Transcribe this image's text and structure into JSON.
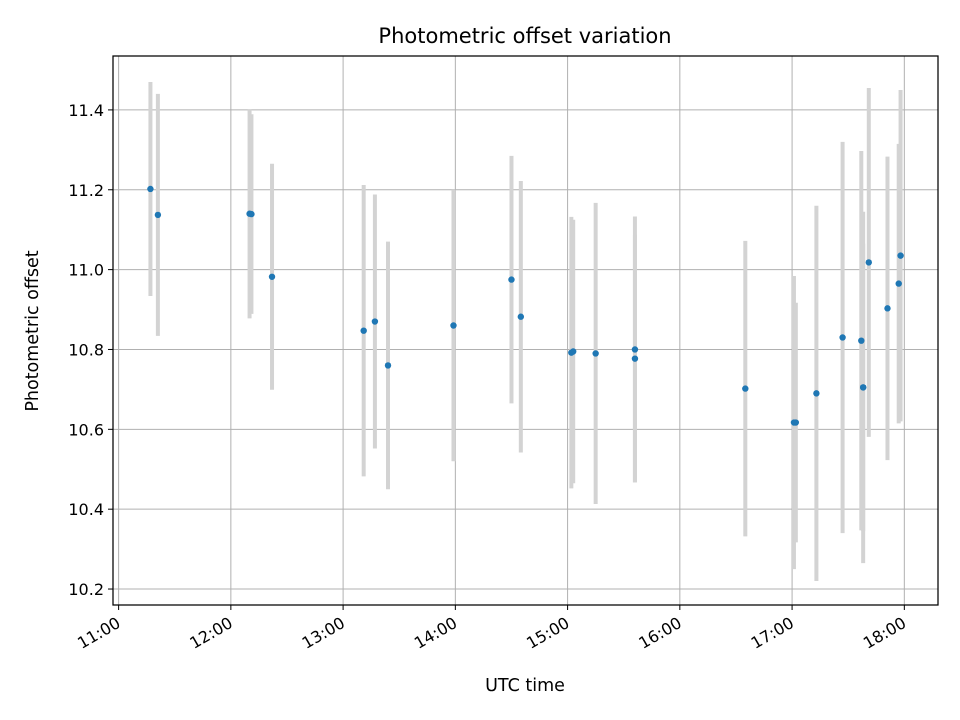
{
  "chart_data": {
    "type": "scatter",
    "title": "Photometric offset variation",
    "xlabel": "UTC time",
    "ylabel": "Photometric offset",
    "x_ticks": [
      "11:00",
      "12:00",
      "13:00",
      "14:00",
      "15:00",
      "16:00",
      "17:00",
      "18:00"
    ],
    "y_ticks": [
      "10.2",
      "10.4",
      "10.6",
      "10.8",
      "11.0",
      "11.2",
      "11.4"
    ],
    "xlim": [
      "10:57",
      "18:18"
    ],
    "ylim": [
      10.16,
      11.535
    ],
    "grid": true,
    "marker_color": "#1f77b4",
    "errorbar_color": "#d3d3d3",
    "points": [
      {
        "time": "11:17",
        "y": 11.202,
        "yerr": 0.268
      },
      {
        "time": "11:21",
        "y": 11.137,
        "yerr": 0.303
      },
      {
        "time": "12:10",
        "y": 11.14,
        "yerr": 0.262
      },
      {
        "time": "12:11",
        "y": 11.139,
        "yerr": 0.25
      },
      {
        "time": "12:22",
        "y": 10.982,
        "yerr": 0.283
      },
      {
        "time": "13:11",
        "y": 10.847,
        "yerr": 0.365
      },
      {
        "time": "13:17",
        "y": 10.87,
        "yerr": 0.318
      },
      {
        "time": "13:24",
        "y": 10.76,
        "yerr": 0.31
      },
      {
        "time": "13:59",
        "y": 10.86,
        "yerr": 0.34
      },
      {
        "time": "14:30",
        "y": 10.975,
        "yerr": 0.31
      },
      {
        "time": "14:35",
        "y": 10.882,
        "yerr": 0.34
      },
      {
        "time": "15:02",
        "y": 10.792,
        "yerr": 0.34
      },
      {
        "time": "15:03",
        "y": 10.795,
        "yerr": 0.33
      },
      {
        "time": "15:15",
        "y": 10.79,
        "yerr": 0.377
      },
      {
        "time": "15:36",
        "y": 10.8,
        "yerr": 0.333
      },
      {
        "time": "15:36",
        "y": 10.777,
        "yerr": 0.31
      },
      {
        "time": "16:35",
        "y": 10.702,
        "yerr": 0.37
      },
      {
        "time": "17:01",
        "y": 10.617,
        "yerr": 0.367
      },
      {
        "time": "17:02",
        "y": 10.617,
        "yerr": 0.3
      },
      {
        "time": "17:13",
        "y": 10.69,
        "yerr": 0.47
      },
      {
        "time": "17:27",
        "y": 10.83,
        "yerr": 0.49
      },
      {
        "time": "17:37",
        "y": 10.822,
        "yerr": 0.475
      },
      {
        "time": "17:38",
        "y": 10.705,
        "yerr": 0.44
      },
      {
        "time": "17:38",
        "y": 10.705,
        "yerr": 0.36
      },
      {
        "time": "17:41",
        "y": 11.018,
        "yerr": 0.437
      },
      {
        "time": "17:51",
        "y": 10.903,
        "yerr": 0.38
      },
      {
        "time": "17:57",
        "y": 10.965,
        "yerr": 0.35
      },
      {
        "time": "17:58",
        "y": 11.035,
        "yerr": 0.415
      }
    ]
  }
}
